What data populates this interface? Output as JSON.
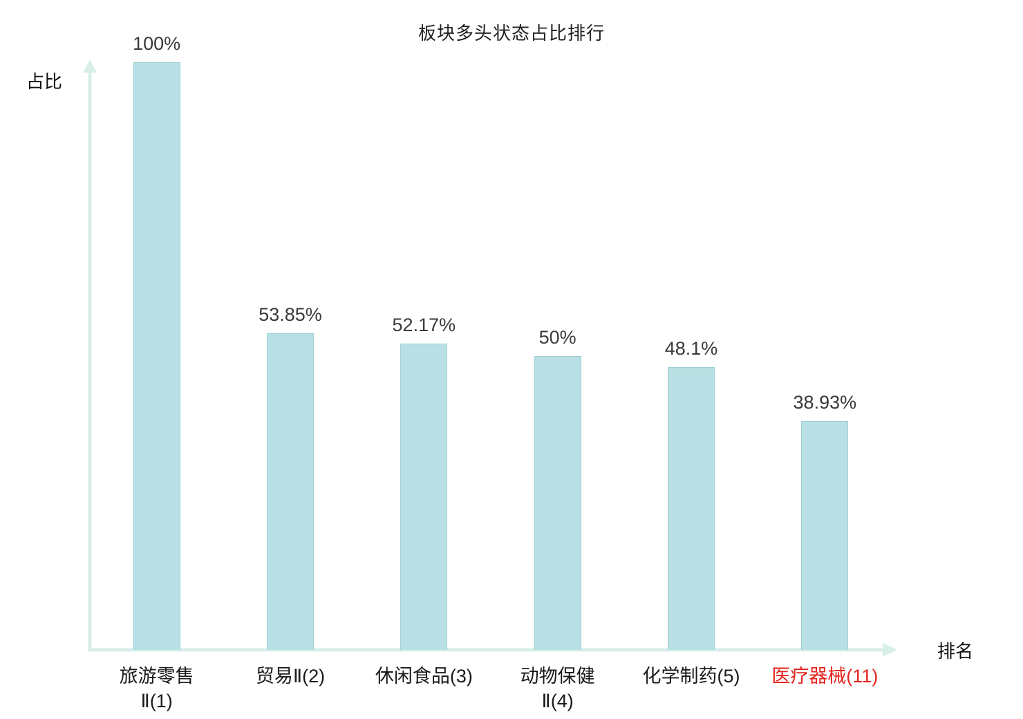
{
  "chart_data": {
    "type": "bar",
    "title": "板块多头状态占比排行",
    "xlabel": "排名",
    "ylabel": "占比",
    "ylim": [
      0,
      100
    ],
    "categories": [
      "旅游零售\nⅡ(1)",
      "贸易Ⅱ(2)",
      "休闲食品(3)",
      "动物保健\nⅡ(4)",
      "化学制药(5)",
      "医疗器械(11)"
    ],
    "values": [
      100,
      53.85,
      52.17,
      50,
      48.1,
      38.93
    ],
    "value_labels": [
      "100%",
      "53.85%",
      "52.17%",
      "50%",
      "48.1%",
      "38.93%"
    ],
    "highlighted_category_index": 5,
    "grid": false,
    "legend": false,
    "colors": {
      "bar_fill": "#b9e0e4",
      "bar_border": "#9ed0d6",
      "axis": "#d8efe9",
      "text": "#3a3a3a",
      "category_text": "#1a1a1a",
      "highlight_text": "#e5231b"
    }
  }
}
